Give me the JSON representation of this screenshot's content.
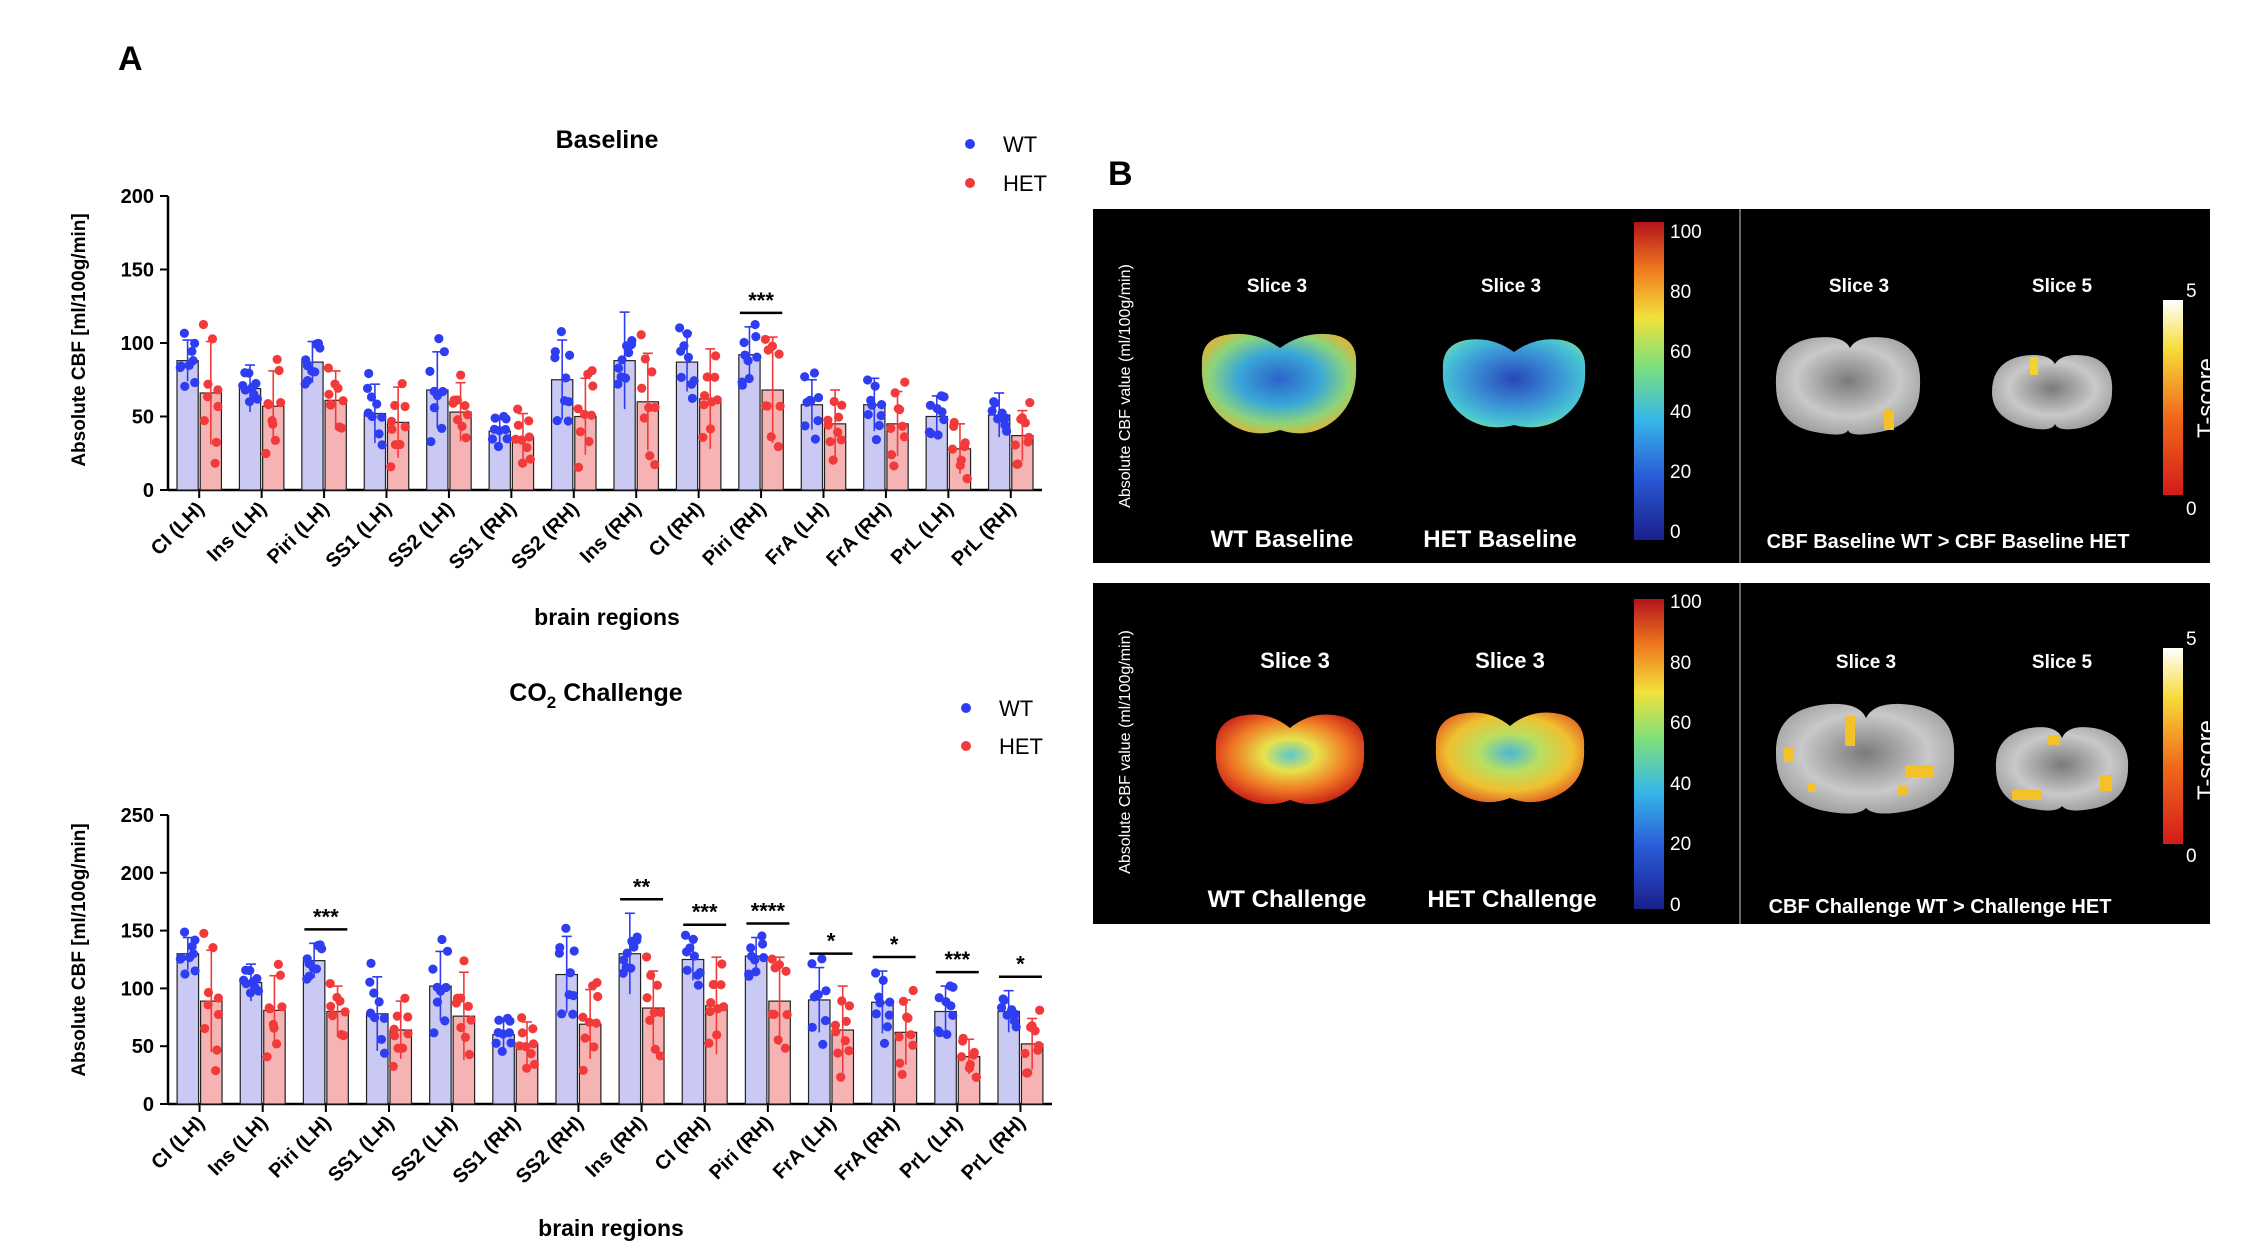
{
  "panel_labels": {
    "a": "A",
    "b": "B"
  },
  "colors": {
    "wt": "#2f3df2",
    "het": "#f23a3a",
    "wt_bar": "#c9c9f3",
    "het_bar": "#f5b3b3",
    "axis": "#000000",
    "panel_bg": "#000000",
    "panel_text": "#ffffff"
  },
  "legend": {
    "wt": "WT",
    "het": "HET"
  },
  "chart_data": [
    {
      "type": "bar",
      "title": "Baseline",
      "xlabel": "brain regions",
      "ylabel": "Absolute CBF [ml/100g/min]",
      "ylim": [
        0,
        200
      ],
      "yticks": [
        0,
        50,
        100,
        150,
        200
      ],
      "categories": [
        "CI (LH)",
        "Ins (LH)",
        "Piri (LH)",
        "SS1 (LH)",
        "SS2 (LH)",
        "SS1 (RH)",
        "SS2 (RH)",
        "Ins (RH)",
        "CI (RH)",
        "Piri (RH)",
        "FrA (LH)",
        "FrA (RH)",
        "PrL (LH)",
        "PrL (RH)"
      ],
      "series": [
        {
          "name": "WT",
          "values": [
            88,
            69,
            87,
            52,
            68,
            40,
            75,
            88,
            87,
            92,
            58,
            58,
            50,
            51
          ],
          "sd": [
            14,
            16,
            14,
            20,
            26,
            10,
            27,
            33,
            20,
            19,
            17,
            18,
            14,
            15
          ]
        },
        {
          "name": "HET",
          "values": [
            66,
            57,
            61,
            46,
            53,
            36,
            50,
            60,
            62,
            68,
            45,
            45,
            28,
            37
          ],
          "sd": [
            35,
            24,
            20,
            24,
            20,
            16,
            26,
            33,
            34,
            36,
            23,
            22,
            17,
            17
          ]
        }
      ],
      "significance": [
        {
          "category": "Piri (RH)",
          "label": "***"
        }
      ]
    },
    {
      "type": "bar",
      "title_main": "CO",
      "title_sub": "2",
      "title_rest": " Challenge",
      "xlabel": "brain regions",
      "ylabel": "Absolute CBF [ml/100g/min]",
      "ylim": [
        0,
        250
      ],
      "yticks": [
        0,
        50,
        100,
        150,
        200,
        250
      ],
      "categories": [
        "CI (LH)",
        "Ins (LH)",
        "Piri (LH)",
        "SS1 (LH)",
        "SS2 (LH)",
        "SS1 (RH)",
        "SS2 (RH)",
        "Ins (RH)",
        "CI (RH)",
        "Piri (RH)",
        "FrA (LH)",
        "FrA (RH)",
        "PrL (LH)",
        "PrL (RH)"
      ],
      "series": [
        {
          "name": "WT",
          "values": [
            130,
            105,
            124,
            78,
            102,
            60,
            112,
            130,
            125,
            128,
            90,
            88,
            80,
            80
          ],
          "sd": [
            14,
            16,
            15,
            32,
            30,
            14,
            33,
            35,
            18,
            16,
            28,
            27,
            22,
            18
          ]
        },
        {
          "name": "HET",
          "values": [
            89,
            81,
            80,
            64,
            76,
            52,
            69,
            83,
            85,
            89,
            64,
            62,
            41,
            52
          ],
          "sd": [
            44,
            30,
            22,
            25,
            38,
            19,
            30,
            32,
            42,
            38,
            38,
            28,
            15,
            22
          ]
        }
      ],
      "significance": [
        {
          "category": "Piri (LH)",
          "label": "***"
        },
        {
          "category": "Ins (RH)",
          "label": "**"
        },
        {
          "category": "CI (RH)",
          "label": "***"
        },
        {
          "category": "Piri (RH)",
          "label": "****"
        },
        {
          "category": "FrA (LH)",
          "label": "*"
        },
        {
          "category": "FrA (RH)",
          "label": "*"
        },
        {
          "category": "PrL (LH)",
          "label": "***"
        },
        {
          "category": "PrL (RH)",
          "label": "*"
        }
      ]
    }
  ],
  "panel_b": {
    "top": {
      "ylabel": "Absolute CBF value (ml/100g/min)",
      "slice_left_1": "Slice 3",
      "slice_left_2": "Slice 3",
      "label_left_1": "WT Baseline",
      "label_left_2": "HET Baseline",
      "colorbar_ticks": [
        "100",
        "80",
        "60",
        "40",
        "20",
        "0"
      ],
      "slice_right_1": "Slice 3",
      "slice_right_2": "Slice 5",
      "tscore_label": "T-score",
      "tscore_max": "5",
      "tscore_min": "0",
      "caption": "CBF Baseline WT > CBF Baseline HET"
    },
    "bottom": {
      "ylabel": "Absolute CBF value (ml/100g/min)",
      "slice_left_1": "Slice 3",
      "slice_left_2": "Slice 3",
      "label_left_1": "WT Challenge",
      "label_left_2": "HET Challenge",
      "colorbar_ticks": [
        "100",
        "80",
        "60",
        "40",
        "20",
        "0"
      ],
      "slice_right_1": "Slice 3",
      "slice_right_2": "Slice 5",
      "tscore_label": "T-score",
      "tscore_max": "5",
      "tscore_min": "0",
      "caption": "CBF Challenge WT > Challenge HET"
    }
  }
}
